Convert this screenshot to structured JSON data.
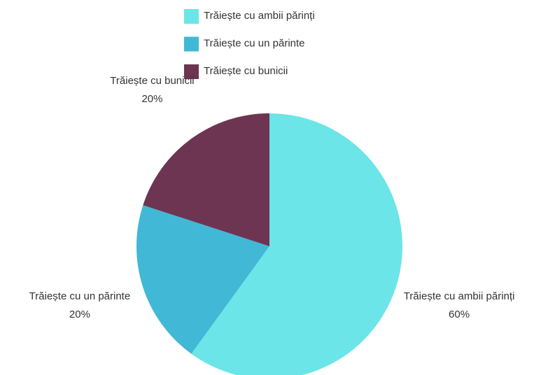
{
  "chart_data": {
    "type": "pie",
    "categories": [
      "Trăiește cu ambii părinți",
      "Trăiește cu un părinte",
      "Trăiește cu bunicii"
    ],
    "values": [
      60,
      20,
      20
    ],
    "value_labels": [
      "60%",
      "20%",
      "20%"
    ],
    "colors": [
      "#6ce5e8",
      "#41b8d5",
      "#6d3552"
    ],
    "legend": "top"
  }
}
